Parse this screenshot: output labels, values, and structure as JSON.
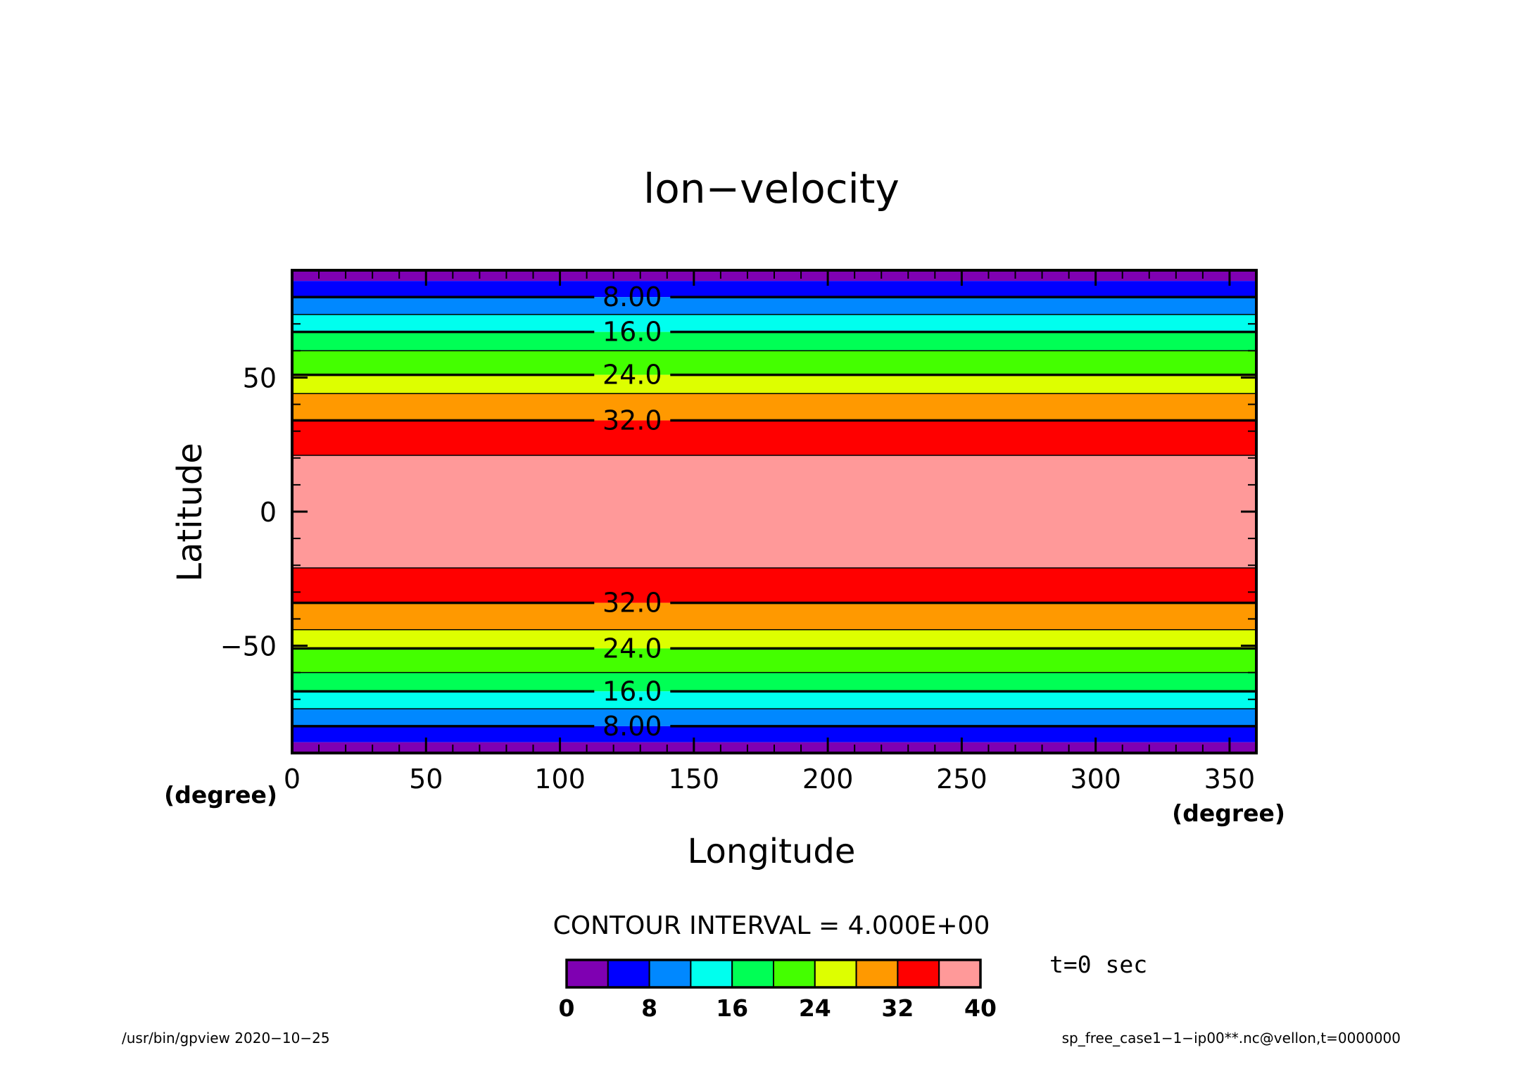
{
  "chart_data": {
    "type": "heatmap",
    "title": "lon−velocity",
    "xlabel": "Longitude",
    "ylabel": "Latitude",
    "x_unit": "(degree)",
    "x_unit_right": "(degree)",
    "xlim": [
      0,
      360
    ],
    "ylim": [
      -90,
      90
    ],
    "x_ticks": [
      "0",
      "50",
      "100",
      "150",
      "200",
      "250",
      "300",
      "350"
    ],
    "x_tick_values": [
      0,
      50,
      100,
      150,
      200,
      250,
      300,
      350
    ],
    "y_ticks": [
      "50",
      "0",
      "−50"
    ],
    "y_tick_values": [
      50,
      0,
      -50
    ],
    "fill_bands": [
      {
        "lat_from": 86,
        "lat_to": 90,
        "level": 0
      },
      {
        "lat_from": 80,
        "lat_to": 86,
        "level": 1
      },
      {
        "lat_from": 73.5,
        "lat_to": 80,
        "level": 2
      },
      {
        "lat_from": 67,
        "lat_to": 73.5,
        "level": 3
      },
      {
        "lat_from": 60,
        "lat_to": 67,
        "level": 4
      },
      {
        "lat_from": 51,
        "lat_to": 60,
        "level": 5
      },
      {
        "lat_from": 44,
        "lat_to": 51,
        "level": 6
      },
      {
        "lat_from": 34,
        "lat_to": 44,
        "level": 7
      },
      {
        "lat_from": 21,
        "lat_to": 34,
        "level": 8
      },
      {
        "lat_from": -21,
        "lat_to": 21,
        "level": 9
      },
      {
        "lat_from": -34,
        "lat_to": -21,
        "level": 8
      },
      {
        "lat_from": -44,
        "lat_to": -34,
        "level": 7
      },
      {
        "lat_from": -51,
        "lat_to": -44,
        "level": 6
      },
      {
        "lat_from": -60,
        "lat_to": -51,
        "level": 5
      },
      {
        "lat_from": -67,
        "lat_to": -60,
        "level": 4
      },
      {
        "lat_from": -73.5,
        "lat_to": -67,
        "level": 3
      },
      {
        "lat_from": -80,
        "lat_to": -73.5,
        "level": 2
      },
      {
        "lat_from": -86,
        "lat_to": -80,
        "level": 1
      },
      {
        "lat_from": -90,
        "lat_to": -86,
        "level": 0
      }
    ],
    "contours": [
      {
        "lat": 80,
        "label": "8.00"
      },
      {
        "lat": 73.5,
        "label": ""
      },
      {
        "lat": 67,
        "label": "16.0"
      },
      {
        "lat": 60,
        "label": ""
      },
      {
        "lat": 51,
        "label": "24.0"
      },
      {
        "lat": 44,
        "label": ""
      },
      {
        "lat": 34,
        "label": "32.0"
      },
      {
        "lat": 21,
        "label": ""
      },
      {
        "lat": -21,
        "label": ""
      },
      {
        "lat": -34,
        "label": "32.0"
      },
      {
        "lat": -44,
        "label": ""
      },
      {
        "lat": -51,
        "label": "24.0"
      },
      {
        "lat": -60,
        "label": ""
      },
      {
        "lat": -67,
        "label": "16.0"
      },
      {
        "lat": -73.5,
        "label": ""
      },
      {
        "lat": -80,
        "label": "8.00"
      }
    ],
    "contour_label_lon": 127,
    "colorbar": {
      "levels": [
        0,
        4,
        8,
        12,
        16,
        20,
        24,
        28,
        32,
        36,
        40
      ],
      "colors": [
        "#7f00b2",
        "#0000ff",
        "#0088ff",
        "#00ffee",
        "#00ff55",
        "#44ff00",
        "#ddff00",
        "#ff9900",
        "#ff0000",
        "#ff9999"
      ],
      "tick_labels": [
        "0",
        "8",
        "16",
        "24",
        "32",
        "40"
      ],
      "tick_values": [
        0,
        8,
        16,
        24,
        32,
        40
      ]
    },
    "contour_interval_text": "CONTOUR INTERVAL = 4.000E+00",
    "time_label": "t=0 sec",
    "grid": false
  },
  "footer": {
    "left": "/usr/bin/gpview   2020−10−25",
    "right": "sp_free_case1−1−ip00**.nc@vellon,t=0000000"
  }
}
